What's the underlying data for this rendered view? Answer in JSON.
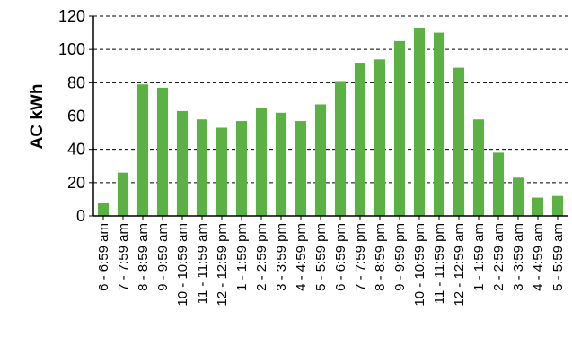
{
  "chart_data": {
    "type": "bar",
    "title": "",
    "xlabel": "",
    "ylabel": "AC kWh",
    "ylim": [
      0,
      120
    ],
    "yticks": [
      0,
      20,
      40,
      60,
      80,
      100,
      120
    ],
    "grid": "horizontal dashed",
    "bar_color": "#5cb145",
    "categories": [
      "6 - 6:59 am",
      "7 - 7:59 am",
      "8 - 8:59 am",
      "9 - 9:59 am",
      "10 - 10:59 am",
      "11 - 11:59 am",
      "12 - 12:59 pm",
      "1 - 1:59 pm",
      "2 - 2:59 pm",
      "3 - 3:59 pm",
      "4 - 4:59 pm",
      "5 - 5:59 pm",
      "6 - 6:59 pm",
      "7 - 7:59 pm",
      "8 - 8:59 pm",
      "9 - 9:59 pm",
      "10 - 10:59 pm",
      "11 - 11:59 pm",
      "12 - 12:59 am",
      "1 - 1:59 am",
      "2 - 2:59 am",
      "3 - 3:59 am",
      "4 - 4:59 am",
      "5 - 5:59 am"
    ],
    "values": [
      8,
      26,
      79,
      77,
      63,
      58,
      53,
      57,
      65,
      62,
      57,
      67,
      81,
      92,
      94,
      105,
      113,
      110,
      89,
      58,
      38,
      23,
      11,
      12
    ]
  }
}
